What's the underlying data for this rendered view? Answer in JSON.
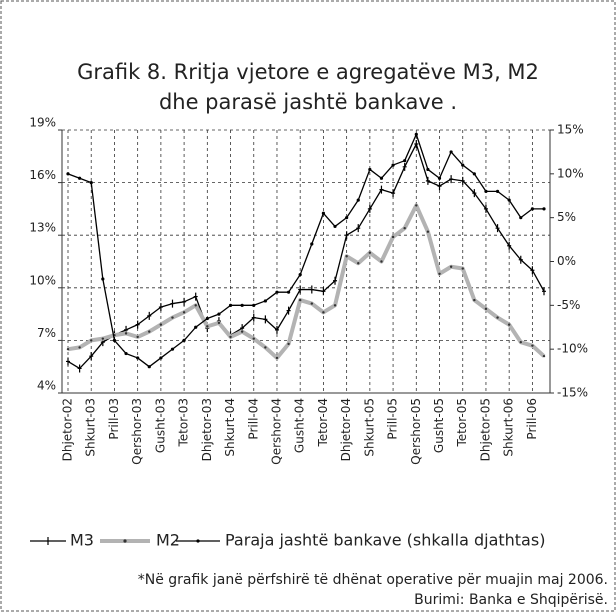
{
  "chart_data": {
    "type": "line",
    "title": [
      "Grafik 8. Rritja vjetore e agregatëve M3, M2",
      "dhe parasë jashtë bankave ."
    ],
    "categories": [
      "Dhjetor-02",
      null,
      "Shkurt-03",
      null,
      "Prill-03",
      null,
      "Qershor-03",
      null,
      "Gusht-03",
      null,
      "Tetor-03",
      null,
      "Dhjetor-03",
      null,
      "Shkurt-04",
      null,
      "Prill-04",
      null,
      "Qershor-04",
      null,
      "Gusht-04",
      null,
      "Tetor-04",
      null,
      "Dhjetor-04",
      null,
      "Shkurt-05",
      null,
      "Prill-05",
      null,
      "Qershor-05",
      null,
      "Gusht-05",
      null,
      "Tetor-05",
      null,
      "Dhjetor-05",
      null,
      "Shkurt-06",
      null,
      "Prill-06",
      null
    ],
    "series": [
      {
        "name": "M3",
        "color": "#000000",
        "marker": "plus",
        "values": [
          5.8,
          5.4,
          6.1,
          6.9,
          7.3,
          7.6,
          7.9,
          8.4,
          8.9,
          9.1,
          9.2,
          9.5,
          7.7,
          8.1,
          7.3,
          7.7,
          8.3,
          8.2,
          7.6,
          8.7,
          9.9,
          9.9,
          9.8,
          10.4,
          13.0,
          13.4,
          14.5,
          15.6,
          15.4,
          16.9,
          18.2,
          16.1,
          15.8,
          16.2,
          16.1,
          15.4,
          14.5,
          13.4,
          12.4,
          11.6,
          11.0,
          9.8
        ]
      },
      {
        "name": "M2",
        "color": "#b3b3b3",
        "marker": "dot",
        "values": [
          6.5,
          6.6,
          7.0,
          7.1,
          7.3,
          7.4,
          7.2,
          7.5,
          7.9,
          8.3,
          8.6,
          9.0,
          7.8,
          8.0,
          7.2,
          7.5,
          7.1,
          6.6,
          6.0,
          6.8,
          9.3,
          9.1,
          8.6,
          9.0,
          11.8,
          11.4,
          12.0,
          11.5,
          12.9,
          13.4,
          14.7,
          13.2,
          10.8,
          11.2,
          11.1,
          9.3,
          8.8,
          8.3,
          7.9,
          6.9,
          6.7,
          6.1
        ]
      },
      {
        "name": "Paraja jashtë bankave (shkalla djathtas)",
        "color": "#000000",
        "marker": "dot",
        "axis": "y2",
        "values": [
          10.0,
          9.5,
          9.0,
          -2.0,
          -9.0,
          -10.5,
          -11.0,
          -12.0,
          -11.0,
          -10.0,
          -9.0,
          -7.5,
          -6.5,
          -6.0,
          -5.0,
          -5.0,
          -5.0,
          -4.5,
          -3.5,
          -3.5,
          -1.5,
          2.0,
          5.5,
          4.0,
          5.0,
          7.0,
          10.5,
          9.5,
          11.0,
          11.5,
          14.5,
          10.5,
          9.5,
          12.5,
          11.0,
          10.0,
          8.0,
          8.0,
          7.0,
          5.0,
          6.0,
          6.0
        ]
      }
    ],
    "ylim": [
      4,
      19
    ],
    "yticks": [
      {
        "value": 4,
        "label": "4%"
      },
      {
        "value": 7,
        "label": "7%"
      },
      {
        "value": 10,
        "label": "10%"
      },
      {
        "value": 13,
        "label": "13%"
      },
      {
        "value": 16,
        "label": "16%"
      },
      {
        "value": 19,
        "label": "19%"
      }
    ],
    "y2lim": [
      -15,
      15
    ],
    "y2ticks": [
      {
        "value": -15,
        "label": "-15%"
      },
      {
        "value": -10,
        "label": "-10%"
      },
      {
        "value": -5,
        "label": "-5%"
      },
      {
        "value": 0,
        "label": "0%"
      },
      {
        "value": 5,
        "label": "5%"
      },
      {
        "value": 10,
        "label": "10%"
      },
      {
        "value": 15,
        "label": "15%"
      }
    ],
    "grid": true,
    "legend": "bottom",
    "notes": [
      "*Në grafik janë përfshirë të dhënat operative për muajin maj 2006.",
      "Burimi: Banka e Shqipërisë."
    ]
  }
}
